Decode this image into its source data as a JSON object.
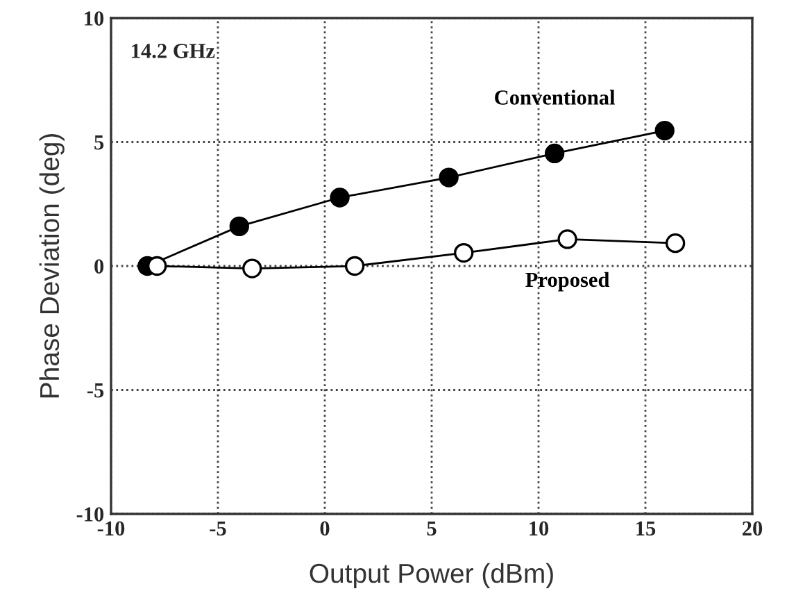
{
  "chart_data": {
    "type": "line",
    "xlabel": "Output Power (dBm)",
    "ylabel": "Phase Deviation (deg)",
    "xlim": [
      -10,
      20
    ],
    "xticks": [
      -10,
      -5,
      0,
      5,
      10,
      15,
      20
    ],
    "ylim": [
      -10,
      10
    ],
    "yticks": [
      -10,
      -5,
      0,
      5,
      10
    ],
    "grid": true,
    "marker": "circle",
    "line_style": "solid",
    "annotations": [
      "14.2 GHz"
    ],
    "series": [
      {
        "name": "Conventional",
        "color": "#000000",
        "x": [
          -8.3,
          -4.0,
          0.7,
          5.8,
          10.75,
          15.9
        ],
        "values": [
          0,
          1.6,
          2.76,
          3.57,
          4.54,
          5.46
        ]
      },
      {
        "name": "Proposed",
        "color": "#000000",
        "x": [
          -7.85,
          -3.4,
          1.4,
          6.5,
          11.35,
          16.4
        ],
        "values": [
          0,
          -0.1,
          0,
          0.53,
          1.08,
          0.92
        ]
      }
    ]
  }
}
